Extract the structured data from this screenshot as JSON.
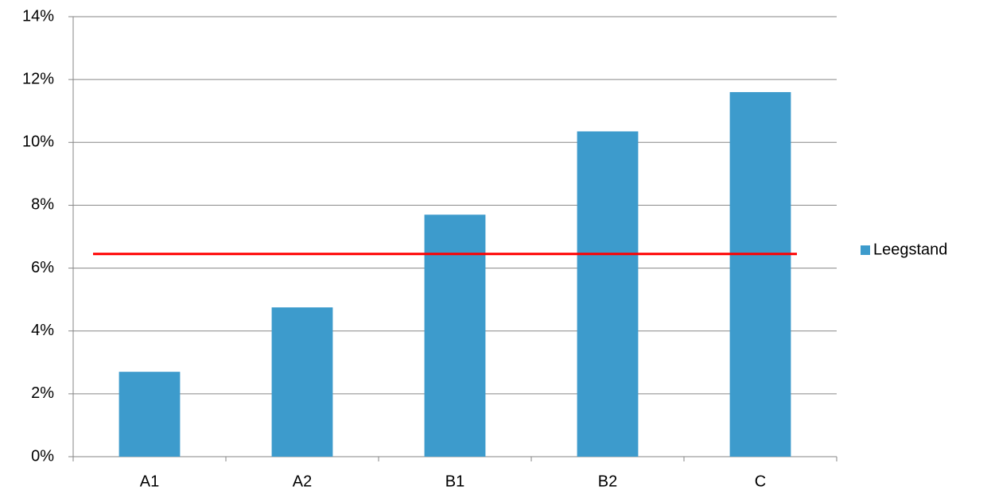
{
  "chart_data": {
    "type": "bar",
    "categories": [
      "A1",
      "A2",
      "B1",
      "B2",
      "C"
    ],
    "series": [
      {
        "name": "Leegstand",
        "color": "#3d9bcc",
        "values": [
          2.7,
          4.75,
          7.7,
          10.35,
          11.6
        ]
      }
    ],
    "ylim": [
      0,
      14
    ],
    "yticks": [
      {
        "value": 0,
        "label": "0%"
      },
      {
        "value": 2,
        "label": "2%"
      },
      {
        "value": 4,
        "label": "4%"
      },
      {
        "value": 6,
        "label": "6%"
      },
      {
        "value": 8,
        "label": "8%"
      },
      {
        "value": 10,
        "label": "10%"
      },
      {
        "value": 12,
        "label": "12%"
      },
      {
        "value": 14,
        "label": "14%"
      }
    ],
    "grid": true,
    "legend": "right",
    "reference_line": {
      "value": 6.45,
      "color": "#ff0000"
    }
  }
}
